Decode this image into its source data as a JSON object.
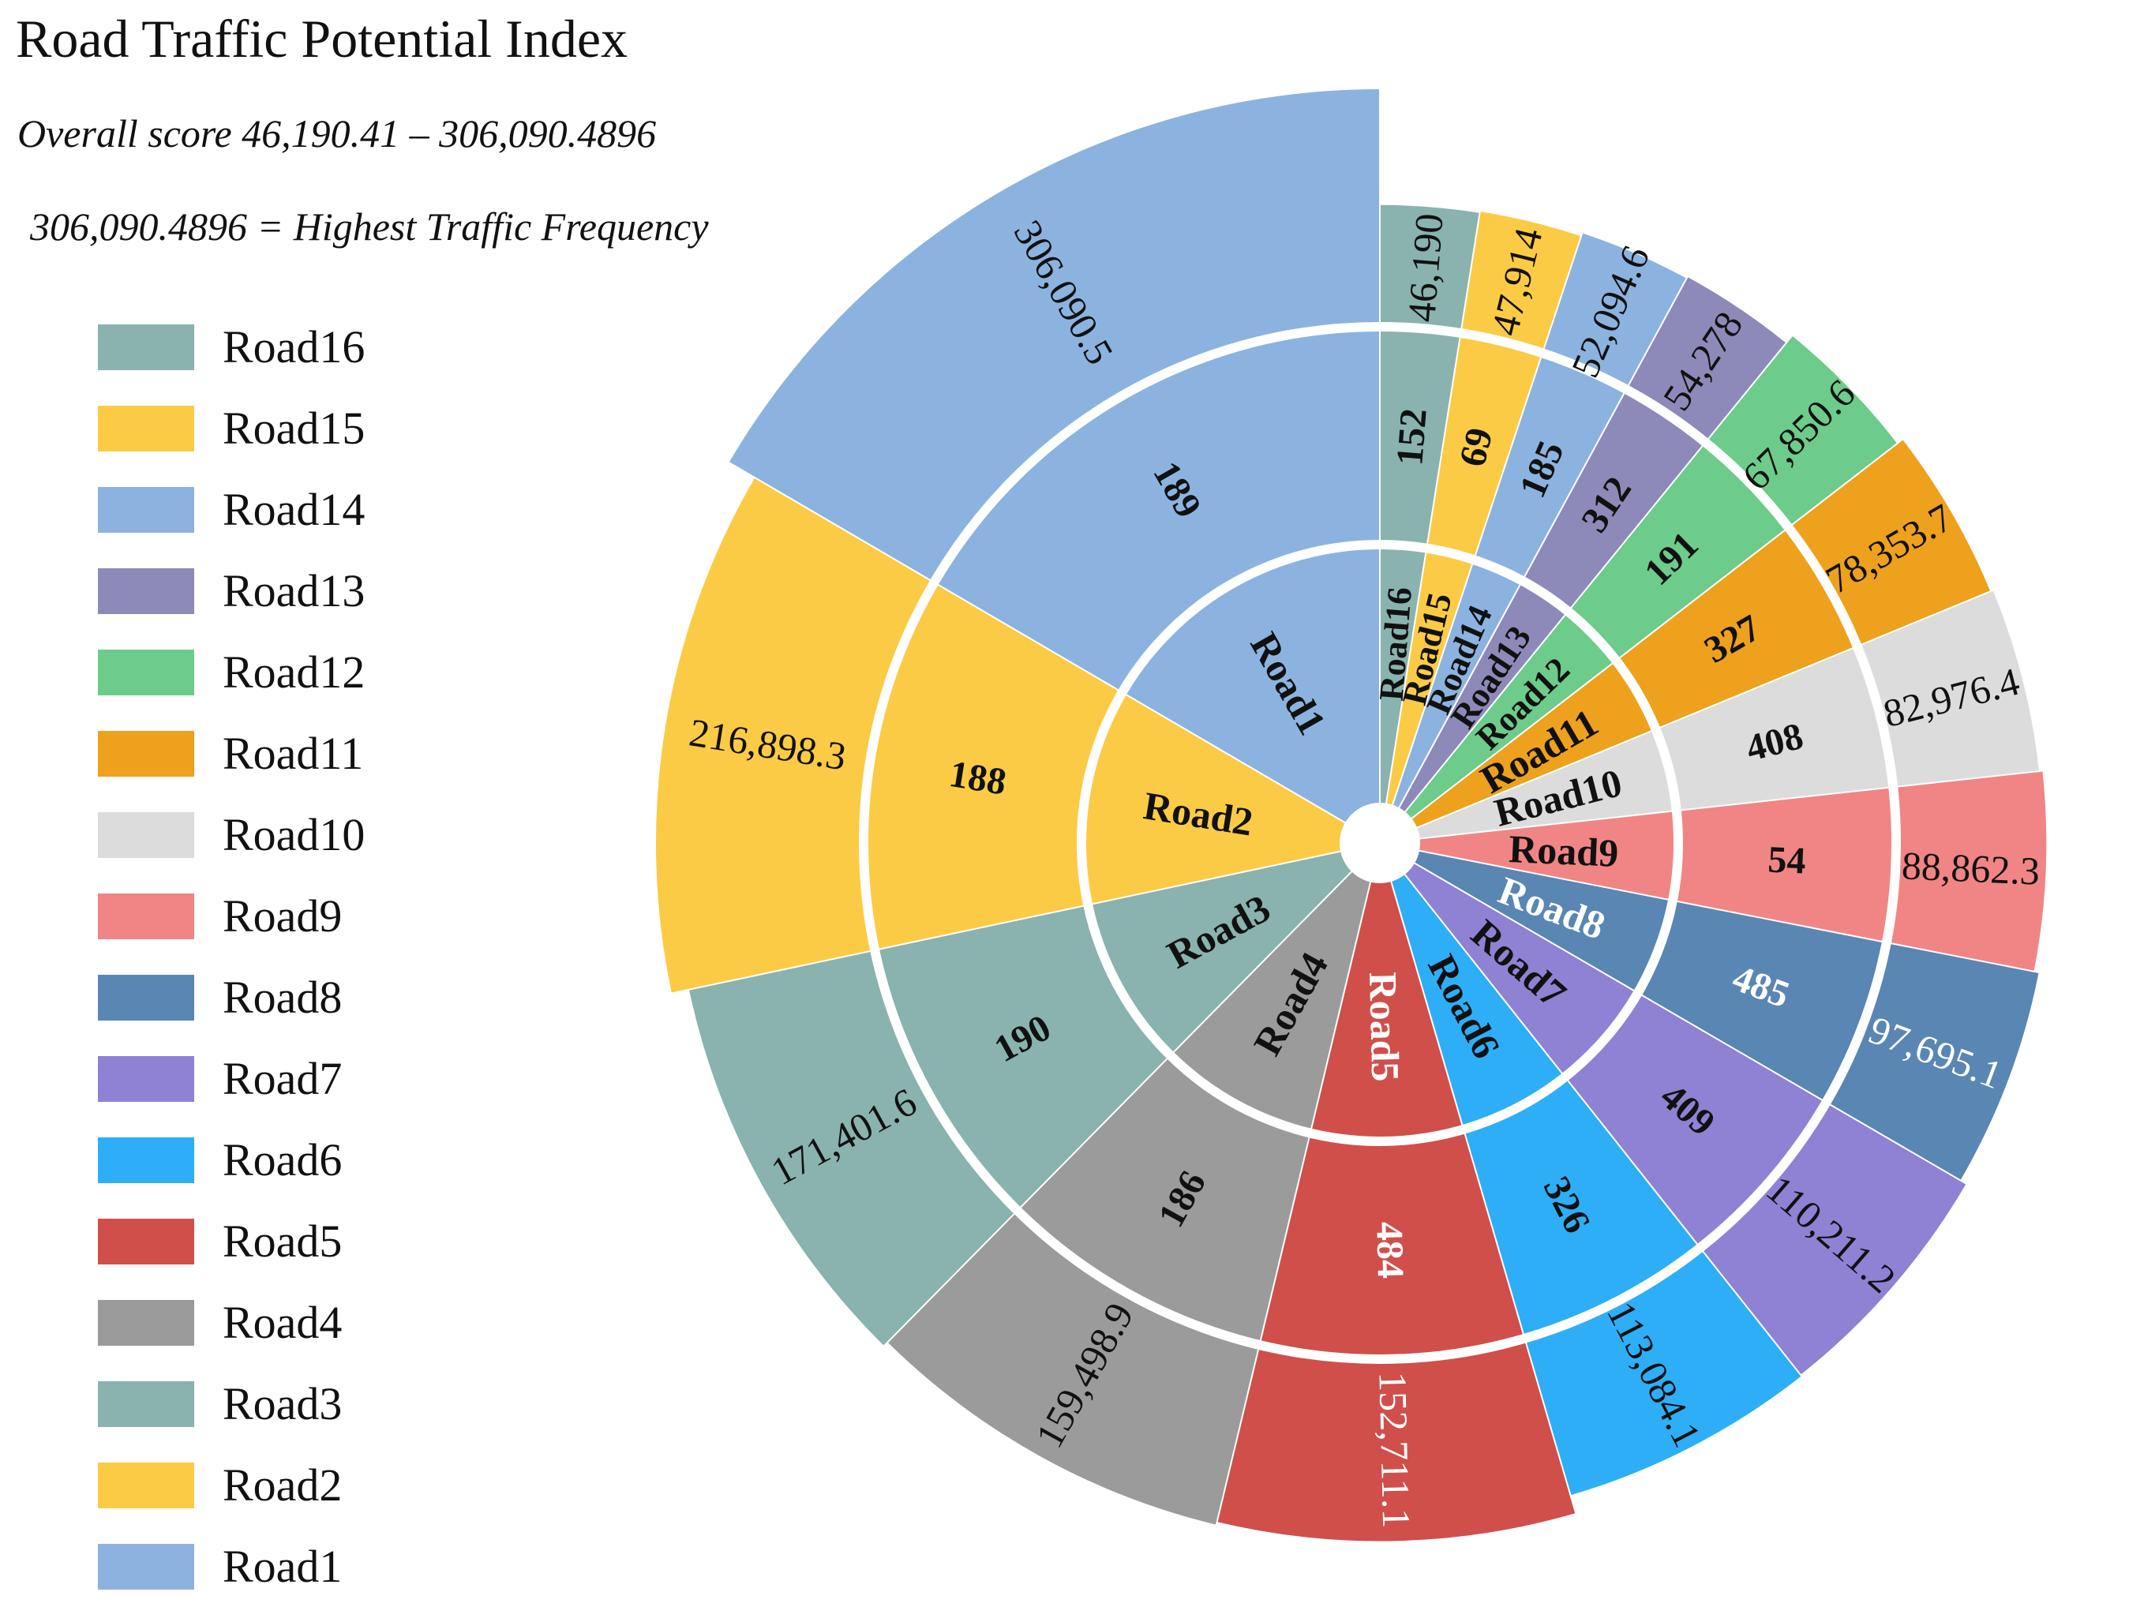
{
  "chart_data": {
    "type": "sunburst",
    "title": "Road Traffic Potential Index",
    "subtitle": "Overall score 46,190.41 – 306,090.4896",
    "note": "306,090.4896 = Highest Traffic Frequency",
    "legend_position": "left",
    "rings": [
      "road name",
      "count",
      "traffic potential score"
    ],
    "roads": [
      {
        "name": "Road16",
        "count": 152,
        "score": 46190,
        "score_label": "46,190",
        "color": "#8AB2AE",
        "count_color": "#111111",
        "name_color": "#111111",
        "score_color": "#111111"
      },
      {
        "name": "Road15",
        "count": 69,
        "score": 47914,
        "score_label": "47,914",
        "color": "#FCCB45",
        "count_color": "#111111",
        "name_color": "#111111",
        "score_color": "#111111"
      },
      {
        "name": "Road14",
        "count": 185,
        "score": 52094.6,
        "score_label": "52,094.6",
        "color": "#8CB3DF",
        "count_color": "#111111",
        "name_color": "#111111",
        "score_color": "#111111"
      },
      {
        "name": "Road13",
        "count": 312,
        "score": 54278,
        "score_label": "54,278",
        "color": "#8D89B8",
        "count_color": "#111111",
        "name_color": "#111111",
        "score_color": "#111111"
      },
      {
        "name": "Road12",
        "count": 191,
        "score": 67850.6,
        "score_label": "67,850.6",
        "color": "#6DCB8B",
        "count_color": "#111111",
        "name_color": "#111111",
        "score_color": "#111111"
      },
      {
        "name": "Road11",
        "count": 327,
        "score": 78353.7,
        "score_label": "78,353.7",
        "color": "#EDA11D",
        "count_color": "#111111",
        "name_color": "#111111",
        "score_color": "#111111"
      },
      {
        "name": "Road10",
        "count": 408,
        "score": 82976.4,
        "score_label": "82,976.4",
        "color": "#DCDCDC",
        "count_color": "#111111",
        "name_color": "#111111",
        "score_color": "#111111"
      },
      {
        "name": "Road9",
        "count": 54,
        "score": 88862.3,
        "score_label": "88,862.3",
        "color": "#F18585",
        "count_color": "#111111",
        "name_color": "#111111",
        "score_color": "#111111"
      },
      {
        "name": "Road8",
        "count": 485,
        "score": 97695.1,
        "score_label": "97,695.1",
        "color": "#5A86B3",
        "count_color": "#FFFFFF",
        "name_color": "#FFFFFF",
        "score_color": "#FFFFFF"
      },
      {
        "name": "Road7",
        "count": 409,
        "score": 110211.2,
        "score_label": "110,211.2",
        "color": "#8F82D4",
        "count_color": "#111111",
        "name_color": "#111111",
        "score_color": "#111111"
      },
      {
        "name": "Road6",
        "count": 326,
        "score": 113084.1,
        "score_label": "113,084.1",
        "color": "#2EAEF6",
        "count_color": "#111111",
        "name_color": "#111111",
        "score_color": "#111111"
      },
      {
        "name": "Road5",
        "count": 484,
        "score": 152711.1,
        "score_label": "152,711.1",
        "color": "#D04F4B",
        "count_color": "#FFFFFF",
        "name_color": "#FFFFFF",
        "score_color": "#FFFFFF"
      },
      {
        "name": "Road4",
        "count": 186,
        "score": 159498.9,
        "score_label": "159,498.9",
        "color": "#9B9B9B",
        "count_color": "#111111",
        "name_color": "#111111",
        "score_color": "#111111"
      },
      {
        "name": "Road3",
        "count": 190,
        "score": 171401.6,
        "score_label": "171,401.6",
        "color": "#8AB2AE",
        "count_color": "#111111",
        "name_color": "#111111",
        "score_color": "#111111"
      },
      {
        "name": "Road2",
        "count": 188,
        "score": 216898.3,
        "score_label": "216,898.3",
        "color": "#FCCB45",
        "count_color": "#111111",
        "name_color": "#111111",
        "score_color": "#111111"
      },
      {
        "name": "Road1",
        "count": 189,
        "score": 306090.5,
        "score_label": "306,090.5",
        "color": "#8CB3DF",
        "count_color": "#111111",
        "name_color": "#111111",
        "score_color": "#111111"
      }
    ]
  }
}
